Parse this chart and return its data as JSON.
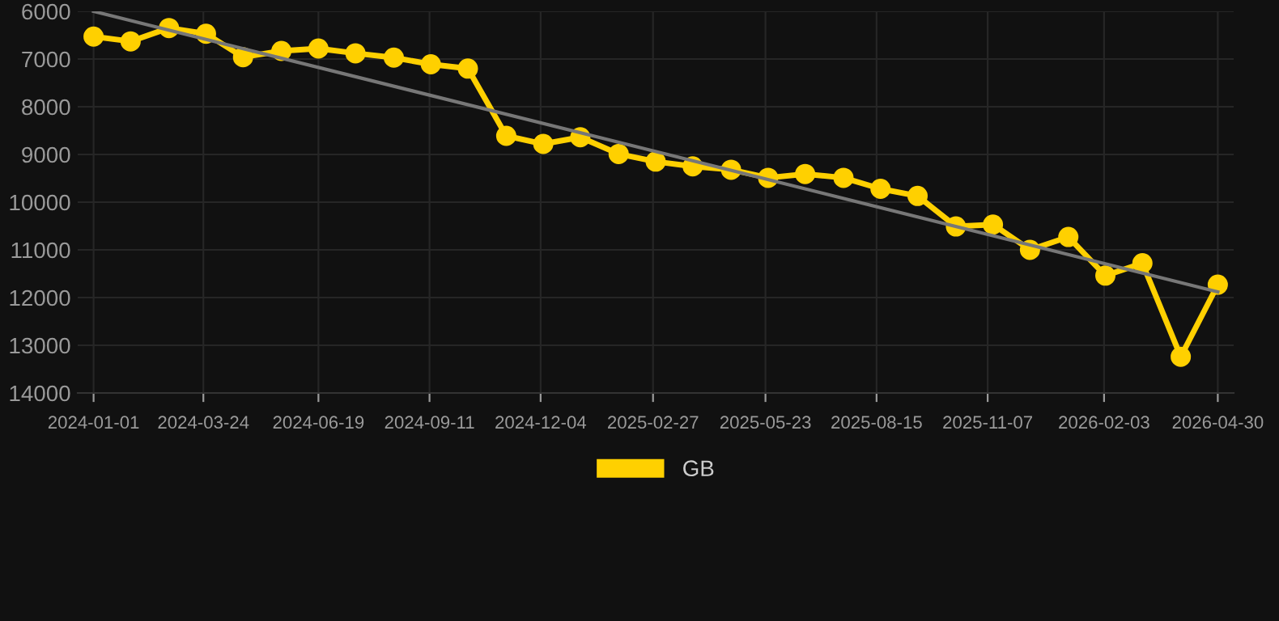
{
  "chart_data": {
    "type": "line",
    "x": [
      "2024-01-01",
      "2024-01-29",
      "2024-02-27",
      "2024-03-26",
      "2024-04-23",
      "2024-05-22",
      "2024-06-19",
      "2024-07-17",
      "2024-08-15",
      "2024-09-12",
      "2024-10-10",
      "2024-11-08",
      "2024-12-06",
      "2025-01-03",
      "2025-02-01",
      "2025-03-01",
      "2025-03-29",
      "2025-04-27",
      "2025-05-25",
      "2025-06-22",
      "2025-07-21",
      "2025-08-18",
      "2025-09-15",
      "2025-10-14",
      "2025-11-11",
      "2025-12-09",
      "2026-01-07",
      "2026-02-04",
      "2026-03-04",
      "2026-04-02",
      "2026-04-30"
    ],
    "series": [
      {
        "name": "GB",
        "color": "#ffd000",
        "marker": "circle",
        "values": [
          6530,
          6630,
          6350,
          6470,
          6960,
          6830,
          6780,
          6880,
          6970,
          7110,
          7200,
          8610,
          8780,
          8640,
          8990,
          9150,
          9250,
          9320,
          9490,
          9410,
          9490,
          9720,
          9870,
          10510,
          10470,
          11000,
          10730,
          11540,
          11280,
          13240,
          11730
        ]
      },
      {
        "type": "line",
        "color": "#777777",
        "marker": "none",
        "x": [
          "2024-01-01",
          "2026-04-30"
        ],
        "values": [
          6000,
          11880
        ]
      }
    ],
    "ylim": [
      14000,
      6000
    ],
    "yticks": [
      6000,
      7000,
      8000,
      9000,
      10000,
      11000,
      12000,
      13000,
      14000
    ],
    "xlim": [
      "2023-12-20",
      "2026-05-12"
    ],
    "xticks": [
      "2024-01-01",
      "2024-03-24",
      "2024-06-19",
      "2024-09-11",
      "2024-12-04",
      "2025-02-27",
      "2025-05-23",
      "2025-08-15",
      "2025-11-07",
      "2026-02-03",
      "2026-04-30"
    ],
    "grid": true,
    "legend": "bottom",
    "line_style": "solid"
  }
}
